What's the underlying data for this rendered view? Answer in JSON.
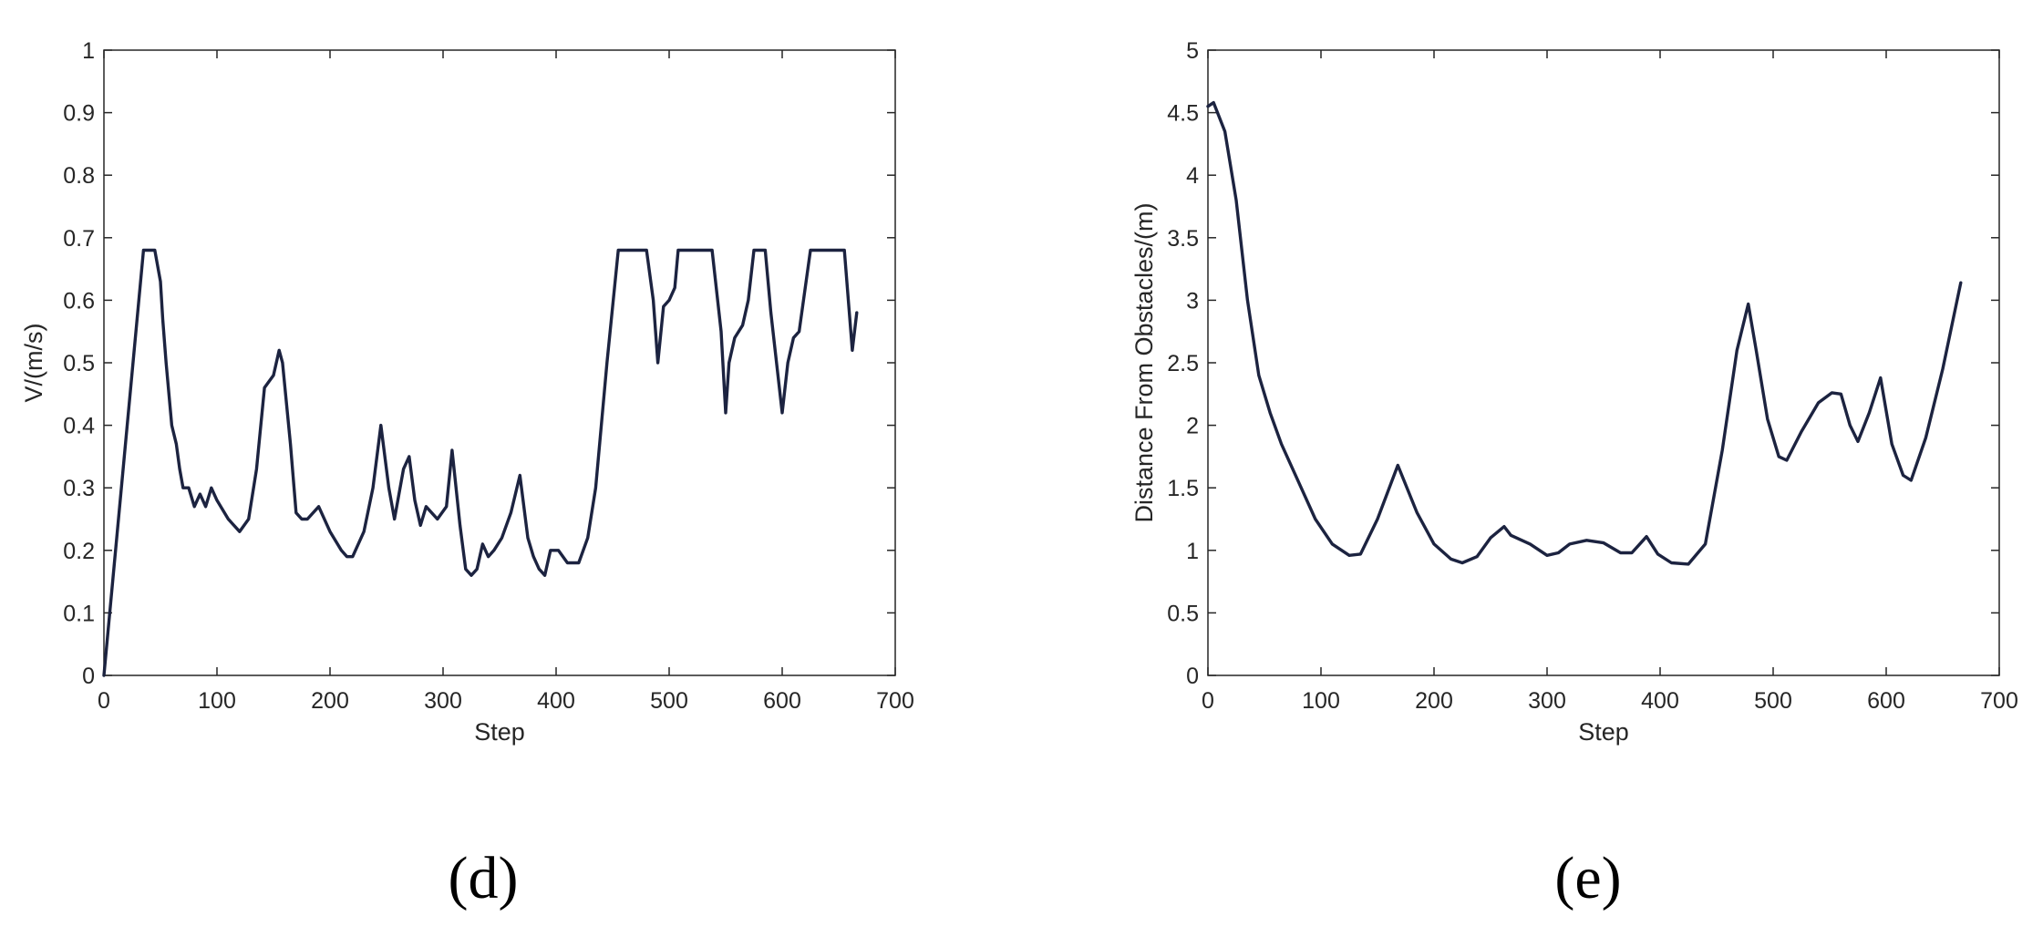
{
  "colors": {
    "line": "#1c2340",
    "axis": "#262626",
    "background": "#ffffff"
  },
  "chart_data": [
    {
      "type": "line",
      "panel_label": "(d)",
      "title": "",
      "xlabel": "Step",
      "ylabel": "V/(m/s)",
      "xlim": [
        0,
        700
      ],
      "ylim": [
        0,
        1
      ],
      "xticks": [
        0,
        100,
        200,
        300,
        400,
        500,
        600,
        700
      ],
      "xtick_labels": [
        "0",
        "100",
        "200",
        "300",
        "400",
        "500",
        "600",
        "700"
      ],
      "yticks": [
        0,
        0.1,
        0.2,
        0.3,
        0.4,
        0.5,
        0.6,
        0.7,
        0.8,
        0.9,
        1
      ],
      "ytick_labels": [
        "0",
        "0.1",
        "0.2",
        "0.3",
        "0.4",
        "0.5",
        "0.6",
        "0.7",
        "0.8",
        "0.9",
        "1"
      ],
      "grid": false,
      "series": [
        {
          "x": [
            0,
            35,
            45,
            50,
            52,
            55,
            60,
            64,
            67,
            70,
            75,
            80,
            85,
            90,
            95,
            100,
            110,
            120,
            128,
            135,
            142,
            150,
            155,
            158,
            165,
            170,
            175,
            180,
            185,
            190,
            200,
            210,
            215,
            220,
            230,
            238,
            245,
            252,
            257,
            265,
            270,
            275,
            280,
            285,
            295,
            303,
            308,
            315,
            320,
            325,
            330,
            335,
            340,
            345,
            352,
            360,
            368,
            375,
            380,
            385,
            390,
            395,
            402,
            410,
            420,
            428,
            435,
            445,
            455,
            480,
            486,
            490,
            495,
            500,
            505,
            508,
            520,
            538,
            546,
            550,
            553,
            558,
            565,
            570,
            575,
            585,
            590,
            600,
            605,
            610,
            615,
            625,
            655,
            662,
            666
          ],
          "y": [
            0,
            0.68,
            0.68,
            0.63,
            0.57,
            0.5,
            0.4,
            0.37,
            0.33,
            0.3,
            0.3,
            0.27,
            0.29,
            0.27,
            0.3,
            0.28,
            0.25,
            0.23,
            0.25,
            0.33,
            0.46,
            0.48,
            0.52,
            0.5,
            0.37,
            0.26,
            0.25,
            0.25,
            0.26,
            0.27,
            0.23,
            0.2,
            0.19,
            0.19,
            0.23,
            0.3,
            0.4,
            0.3,
            0.25,
            0.33,
            0.35,
            0.28,
            0.24,
            0.27,
            0.25,
            0.27,
            0.36,
            0.24,
            0.17,
            0.16,
            0.17,
            0.21,
            0.19,
            0.2,
            0.22,
            0.26,
            0.32,
            0.22,
            0.19,
            0.17,
            0.16,
            0.2,
            0.2,
            0.18,
            0.18,
            0.22,
            0.3,
            0.5,
            0.68,
            0.68,
            0.6,
            0.5,
            0.59,
            0.6,
            0.62,
            0.68,
            0.68,
            0.68,
            0.55,
            0.42,
            0.5,
            0.54,
            0.56,
            0.6,
            0.68,
            0.68,
            0.58,
            0.42,
            0.5,
            0.54,
            0.55,
            0.68,
            0.68,
            0.52,
            0.58
          ]
        }
      ]
    },
    {
      "type": "line",
      "panel_label": "(e)",
      "title": "",
      "xlabel": "Step",
      "ylabel": "Distance From Obstacles/(m)",
      "xlim": [
        0,
        700
      ],
      "ylim": [
        0,
        5
      ],
      "xticks": [
        0,
        100,
        200,
        300,
        400,
        500,
        600,
        700
      ],
      "xtick_labels": [
        "0",
        "100",
        "200",
        "300",
        "400",
        "500",
        "600",
        "700"
      ],
      "yticks": [
        0,
        0.5,
        1,
        1.5,
        2,
        2.5,
        3,
        3.5,
        4,
        4.5,
        5
      ],
      "ytick_labels": [
        "0",
        "0.5",
        "1",
        "1.5",
        "2",
        "2.5",
        "3",
        "3.5",
        "4",
        "4.5",
        "5"
      ],
      "grid": false,
      "series": [
        {
          "x": [
            0,
            5,
            15,
            25,
            35,
            45,
            55,
            65,
            80,
            95,
            110,
            125,
            135,
            150,
            168,
            185,
            200,
            215,
            225,
            238,
            250,
            262,
            268,
            285,
            300,
            310,
            320,
            335,
            350,
            365,
            375,
            388,
            398,
            410,
            425,
            440,
            455,
            468,
            478,
            485,
            495,
            505,
            512,
            525,
            540,
            552,
            560,
            568,
            575,
            585,
            595,
            605,
            615,
            622,
            635,
            650,
            666
          ],
          "y": [
            4.55,
            4.58,
            4.35,
            3.8,
            3.0,
            2.4,
            2.1,
            1.85,
            1.55,
            1.25,
            1.05,
            0.96,
            0.97,
            1.25,
            1.68,
            1.3,
            1.05,
            0.93,
            0.9,
            0.95,
            1.1,
            1.19,
            1.12,
            1.05,
            0.96,
            0.98,
            1.05,
            1.08,
            1.06,
            0.98,
            0.98,
            1.11,
            0.97,
            0.9,
            0.89,
            1.05,
            1.8,
            2.6,
            2.97,
            2.6,
            2.05,
            1.75,
            1.72,
            1.95,
            2.18,
            2.26,
            2.25,
            2.0,
            1.87,
            2.1,
            2.38,
            1.85,
            1.6,
            1.56,
            1.9,
            2.45,
            3.14
          ]
        }
      ]
    }
  ]
}
